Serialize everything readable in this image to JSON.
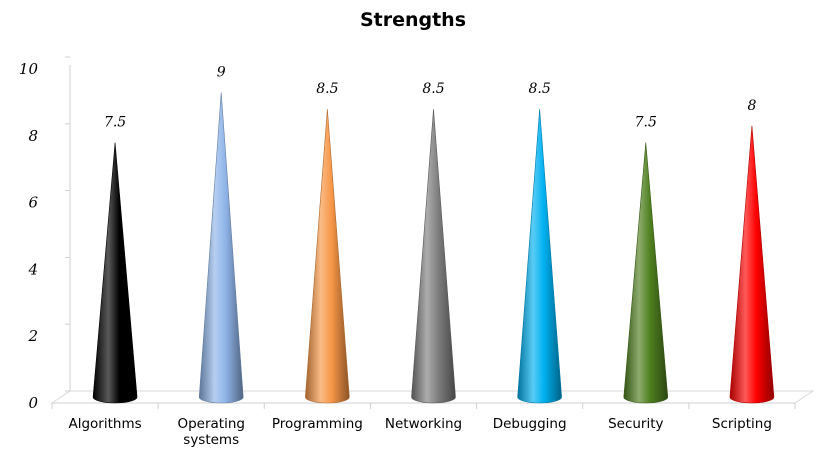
{
  "chart_data": {
    "type": "bar",
    "style": "3d-cone",
    "title": "Strengths",
    "categories": [
      [
        "Algorithms"
      ],
      [
        "Operating",
        "systems"
      ],
      [
        "Programming"
      ],
      [
        "Networking"
      ],
      [
        "Debugging"
      ],
      [
        "Security"
      ],
      [
        "Scripting"
      ]
    ],
    "values": [
      7.5,
      9,
      8.5,
      8.5,
      8.5,
      7.5,
      8
    ],
    "data_labels": [
      "7.5",
      "9",
      "8.5",
      "8.5",
      "8.5",
      "7.5",
      "8"
    ],
    "colors": [
      "#000000",
      "#8fb4e8",
      "#f79646",
      "#7f7f7f",
      "#00b0f0",
      "#4f7f1f",
      "#ff0000"
    ],
    "ylim": [
      0,
      10
    ],
    "yticks": [
      0,
      2,
      4,
      6,
      8,
      10
    ],
    "grid": false,
    "legend": "none"
  }
}
